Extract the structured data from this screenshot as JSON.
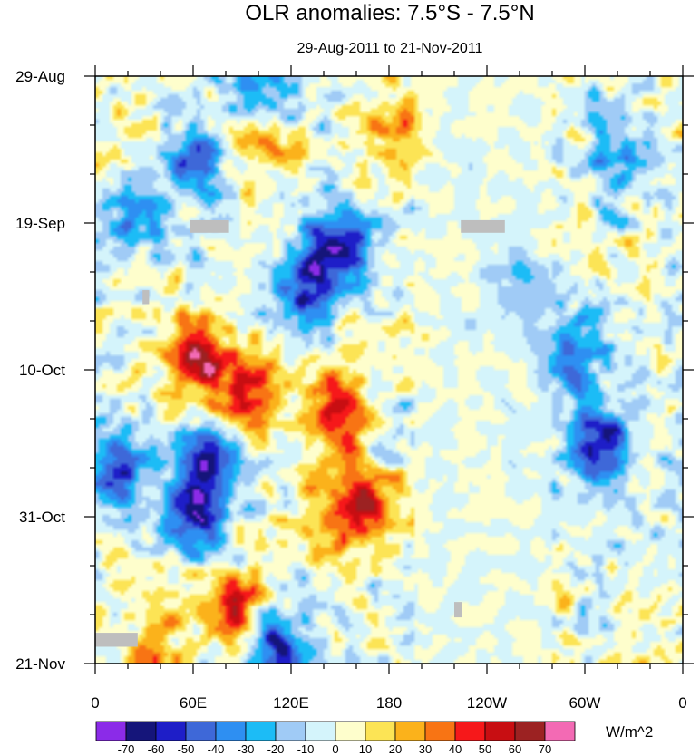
{
  "chart_data": {
    "type": "heatmap",
    "title": "OLR anomalies: 7.5°S - 7.5°N",
    "subtitle": "29-Aug-2011 to 21-Nov-2011",
    "x_ticks": [
      {
        "label": "0",
        "lon": 0
      },
      {
        "label": "60E",
        "lon": 60
      },
      {
        "label": "120E",
        "lon": 120
      },
      {
        "label": "180",
        "lon": 180
      },
      {
        "label": "120W",
        "lon": 240
      },
      {
        "label": "60W",
        "lon": 300
      },
      {
        "label": "0",
        "lon": 360
      }
    ],
    "x_range": [
      0,
      360
    ],
    "y_ticks": [
      {
        "label": "29-Aug",
        "day": 0
      },
      {
        "label": "19-Sep",
        "day": 21
      },
      {
        "label": "10-Oct",
        "day": 42
      },
      {
        "label": "31-Oct",
        "day": 63
      },
      {
        "label": "21-Nov",
        "day": 84
      }
    ],
    "y_range_days": [
      0,
      84
    ],
    "colorbar": {
      "unit": "W/m^2",
      "levels": [
        "-70",
        "-60",
        "-50",
        "-40",
        "-30",
        "-20",
        "-10",
        "0",
        "10",
        "20",
        "30",
        "40",
        "50",
        "60",
        "70"
      ],
      "colors": [
        "#8b2be8",
        "#15157a",
        "#1e1ec8",
        "#3e68d8",
        "#2e8ff2",
        "#1cbcf6",
        "#a0cbf6",
        "#d4f4fb",
        "#fefecc",
        "#fce455",
        "#fbb21b",
        "#f87414",
        "#f6181a",
        "#c80e12",
        "#9c2222",
        "#f36ab4"
      ]
    },
    "features": [
      {
        "lon": 60,
        "day": 40,
        "value": 55
      },
      {
        "lon": 90,
        "day": 45,
        "value": 60
      },
      {
        "lon": 150,
        "day": 48,
        "value": 55
      },
      {
        "lon": 165,
        "day": 62,
        "value": 50
      },
      {
        "lon": 100,
        "day": 8,
        "value": 35
      },
      {
        "lon": 180,
        "day": 8,
        "value": 30
      },
      {
        "lon": 85,
        "day": 76,
        "value": 50
      },
      {
        "lon": 35,
        "day": 82,
        "value": 35
      },
      {
        "lon": 140,
        "day": 64,
        "value": 25
      },
      {
        "lon": 60,
        "day": 63,
        "value": -60
      },
      {
        "lon": 70,
        "day": 55,
        "value": -55
      },
      {
        "lon": 150,
        "day": 24,
        "value": -55
      },
      {
        "lon": 130,
        "day": 30,
        "value": -50
      },
      {
        "lon": 60,
        "day": 12,
        "value": -45
      },
      {
        "lon": 10,
        "day": 56,
        "value": -50
      },
      {
        "lon": 310,
        "day": 53,
        "value": -60
      },
      {
        "lon": 295,
        "day": 40,
        "value": -40
      },
      {
        "lon": 20,
        "day": 20,
        "value": -35
      },
      {
        "lon": 110,
        "day": 82,
        "value": -50
      },
      {
        "lon": 320,
        "day": 10,
        "value": -30
      },
      {
        "lon": 260,
        "day": 30,
        "value": -20
      },
      {
        "lon": 100,
        "day": 2,
        "value": -45
      }
    ],
    "missing_data": [
      {
        "lon0": 58,
        "lon1": 82,
        "day0": 20.6,
        "day1": 22.4
      },
      {
        "lon0": 224,
        "lon1": 251,
        "day0": 20.6,
        "day1": 22.4
      },
      {
        "lon0": 29,
        "lon1": 33,
        "day0": 30.6,
        "day1": 32.6
      },
      {
        "lon0": 0,
        "lon1": 26,
        "day0": 79.6,
        "day1": 81.6
      },
      {
        "lon0": 220,
        "lon1": 225,
        "day0": 75.2,
        "day1": 77.4
      }
    ]
  }
}
